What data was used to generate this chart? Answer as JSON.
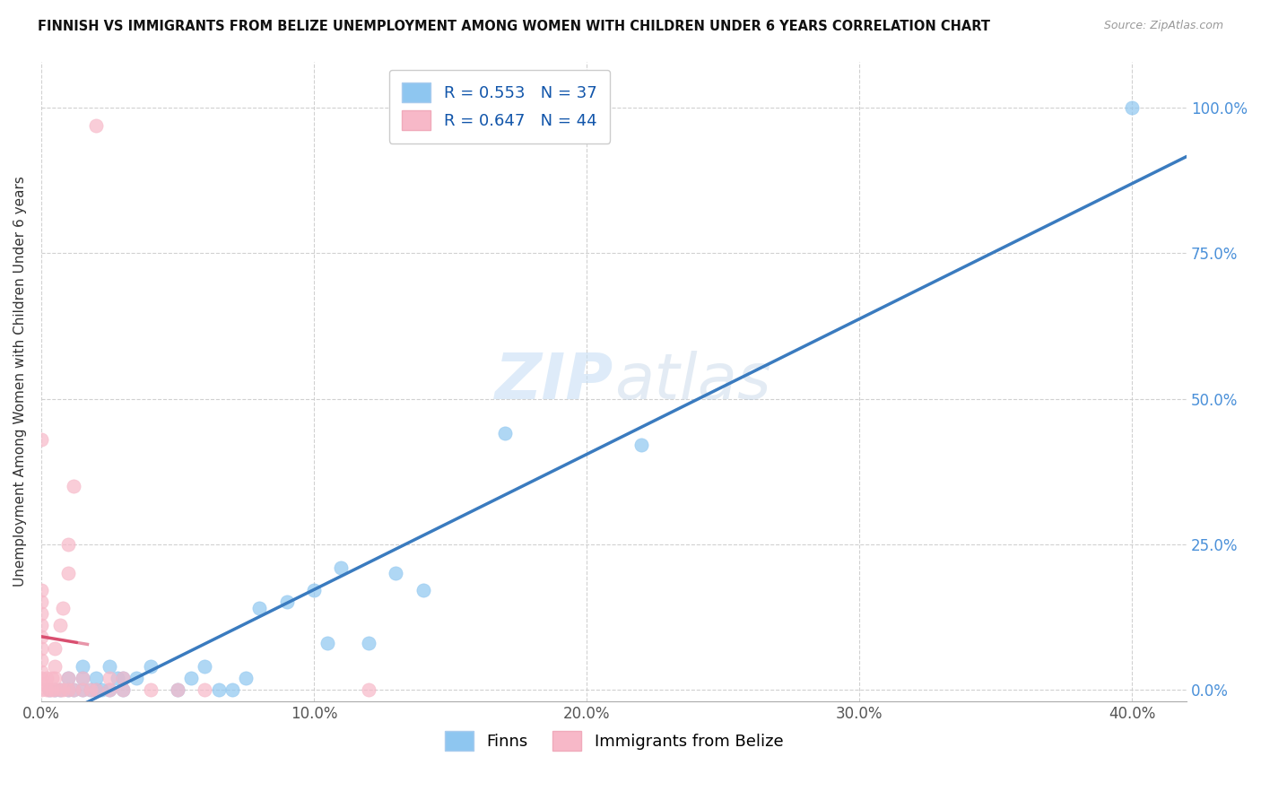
{
  "title": "FINNISH VS IMMIGRANTS FROM BELIZE UNEMPLOYMENT AMONG WOMEN WITH CHILDREN UNDER 6 YEARS CORRELATION CHART",
  "source": "Source: ZipAtlas.com",
  "ylabel": "Unemployment Among Women with Children Under 6 years",
  "xlim": [
    0.0,
    0.42
  ],
  "ylim": [
    -0.02,
    1.08
  ],
  "finns_R": 0.553,
  "finns_N": 37,
  "belize_R": 0.647,
  "belize_N": 44,
  "finns_color": "#8ec6f0",
  "belize_color": "#f7b8c8",
  "finns_line_color": "#3a7bbf",
  "belize_line_color": "#d94f70",
  "watermark_color": "#c8dff5",
  "finns_scatter": [
    [
      0.003,
      0.0
    ],
    [
      0.005,
      0.0
    ],
    [
      0.007,
      0.0
    ],
    [
      0.01,
      0.0
    ],
    [
      0.01,
      0.02
    ],
    [
      0.012,
      0.0
    ],
    [
      0.015,
      0.0
    ],
    [
      0.015,
      0.02
    ],
    [
      0.015,
      0.04
    ],
    [
      0.018,
      0.0
    ],
    [
      0.02,
      0.0
    ],
    [
      0.02,
      0.02
    ],
    [
      0.022,
      0.0
    ],
    [
      0.025,
      0.0
    ],
    [
      0.025,
      0.04
    ],
    [
      0.028,
      0.02
    ],
    [
      0.03,
      0.0
    ],
    [
      0.03,
      0.02
    ],
    [
      0.035,
      0.02
    ],
    [
      0.04,
      0.04
    ],
    [
      0.05,
      0.0
    ],
    [
      0.055,
      0.02
    ],
    [
      0.06,
      0.04
    ],
    [
      0.065,
      0.0
    ],
    [
      0.07,
      0.0
    ],
    [
      0.075,
      0.02
    ],
    [
      0.08,
      0.14
    ],
    [
      0.09,
      0.15
    ],
    [
      0.1,
      0.17
    ],
    [
      0.105,
      0.08
    ],
    [
      0.11,
      0.21
    ],
    [
      0.12,
      0.08
    ],
    [
      0.13,
      0.2
    ],
    [
      0.14,
      0.17
    ],
    [
      0.17,
      0.44
    ],
    [
      0.22,
      0.42
    ],
    [
      0.4,
      1.0
    ]
  ],
  "belize_scatter": [
    [
      0.0,
      0.0
    ],
    [
      0.0,
      0.01
    ],
    [
      0.0,
      0.02
    ],
    [
      0.0,
      0.03
    ],
    [
      0.0,
      0.05
    ],
    [
      0.0,
      0.07
    ],
    [
      0.0,
      0.09
    ],
    [
      0.0,
      0.11
    ],
    [
      0.0,
      0.13
    ],
    [
      0.0,
      0.15
    ],
    [
      0.0,
      0.17
    ],
    [
      0.0,
      0.43
    ],
    [
      0.002,
      0.0
    ],
    [
      0.002,
      0.02
    ],
    [
      0.003,
      0.0
    ],
    [
      0.004,
      0.0
    ],
    [
      0.004,
      0.02
    ],
    [
      0.005,
      0.0
    ],
    [
      0.005,
      0.02
    ],
    [
      0.005,
      0.04
    ],
    [
      0.005,
      0.07
    ],
    [
      0.007,
      0.0
    ],
    [
      0.007,
      0.11
    ],
    [
      0.008,
      0.0
    ],
    [
      0.008,
      0.14
    ],
    [
      0.01,
      0.0
    ],
    [
      0.01,
      0.02
    ],
    [
      0.01,
      0.2
    ],
    [
      0.01,
      0.25
    ],
    [
      0.012,
      0.0
    ],
    [
      0.012,
      0.35
    ],
    [
      0.015,
      0.0
    ],
    [
      0.015,
      0.02
    ],
    [
      0.018,
      0.0
    ],
    [
      0.02,
      0.0
    ],
    [
      0.025,
      0.0
    ],
    [
      0.025,
      0.02
    ],
    [
      0.03,
      0.0
    ],
    [
      0.03,
      0.02
    ],
    [
      0.04,
      0.0
    ],
    [
      0.05,
      0.0
    ],
    [
      0.06,
      0.0
    ],
    [
      0.12,
      0.0
    ],
    [
      0.02,
      0.97
    ]
  ]
}
